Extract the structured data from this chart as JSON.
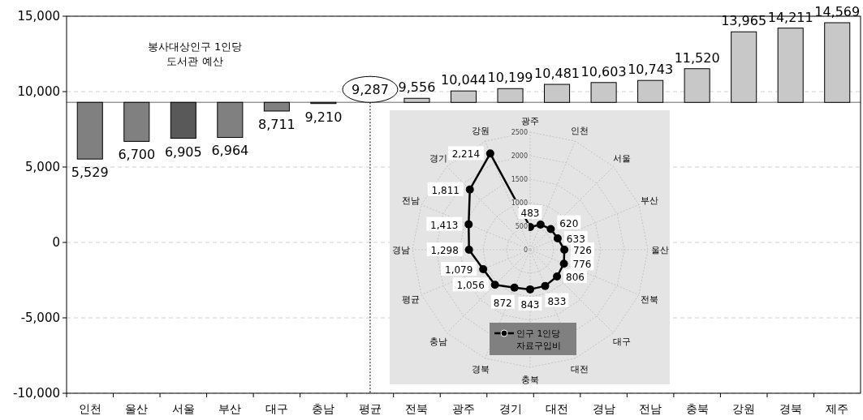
{
  "chart_data": [
    {
      "type": "bar",
      "title": "봉사대상인구 1인당\n도서관 예산",
      "categories": [
        "인천",
        "울산",
        "서울",
        "부산",
        "대구",
        "충남",
        "평균",
        "전북",
        "광주",
        "경기",
        "대전",
        "경남",
        "전남",
        "충북",
        "강원",
        "경북",
        "제주"
      ],
      "base": [
        9287,
        9287,
        9287,
        9287,
        9287,
        9287,
        null,
        9287,
        9287,
        9287,
        9287,
        9287,
        9287,
        9287,
        9287,
        9287,
        9287
      ],
      "values": [
        -3758,
        -2587,
        -2382,
        -2323,
        -576,
        -77,
        null,
        269,
        757,
        912,
        1194,
        1316,
        1456,
        2233,
        4678,
        4924,
        5282
      ],
      "value_labels": [
        "5,529",
        "6,700",
        "6,905",
        "6,964",
        "8,711",
        "9,210",
        null,
        "9,556",
        "10,044",
        "10,199",
        "10,481",
        "10,603",
        "10,743",
        "11,520",
        "13,965",
        "14,211",
        "14,569"
      ],
      "colors": [
        "#808080",
        "#808080",
        "#595959",
        "#808080",
        "#808080",
        "#808080",
        null,
        "#c8c8c8",
        "#c8c8c8",
        "#c8c8c8",
        "#c8c8c8",
        "#c8c8c8",
        "#c8c8c8",
        "#c8c8c8",
        "#c8c8c8",
        "#c8c8c8",
        "#c8c8c8"
      ],
      "ylim": [
        -10000,
        15000
      ],
      "yticks": [
        {
          "value": -10000,
          "label": "-10,000"
        },
        {
          "value": -5000,
          "label": "-5,000"
        },
        {
          "value": 0,
          "label": "0"
        },
        {
          "value": 5000,
          "label": "5,000"
        },
        {
          "value": 10000,
          "label": "10,000"
        },
        {
          "value": 15000,
          "label": "15,000"
        }
      ],
      "grid": "y",
      "ref_lines": [
        {
          "axis": "y",
          "value": 9287,
          "label": "9,287",
          "color": "#999999",
          "line_style": "solid"
        },
        {
          "axis": "x",
          "value": "평균",
          "color": "#000000",
          "line_style": "dotted"
        }
      ]
    },
    {
      "type": "radar",
      "categories": [
        "광주",
        "인천",
        "서울",
        "부산",
        "울산",
        "전북",
        "대구",
        "대전",
        "충북",
        "경북",
        "충남",
        "평균",
        "경남",
        "전남",
        "경기",
        "강원"
      ],
      "series": [
        {
          "name": "인구 1인당\n자료구입비",
          "color": "#000000",
          "values": [
            483,
            580,
            620,
            633,
            726,
            776,
            806,
            833,
            843,
            872,
            1056,
            1079,
            1298,
            1413,
            1811,
            2214
          ],
          "value_labels": [
            "483",
            null,
            "620",
            "633",
            "726",
            "776",
            "806",
            "833",
            "843",
            "872",
            "1,056",
            "1,079",
            "1,298",
            "1,413",
            "1,811",
            "2,214"
          ]
        }
      ],
      "ylim": [
        0,
        2500
      ],
      "yticks": [
        0,
        500,
        1000,
        1500,
        2000,
        2500
      ],
      "grid": true,
      "legend": "bottom",
      "marker": "circle",
      "line_style": "solid"
    }
  ]
}
